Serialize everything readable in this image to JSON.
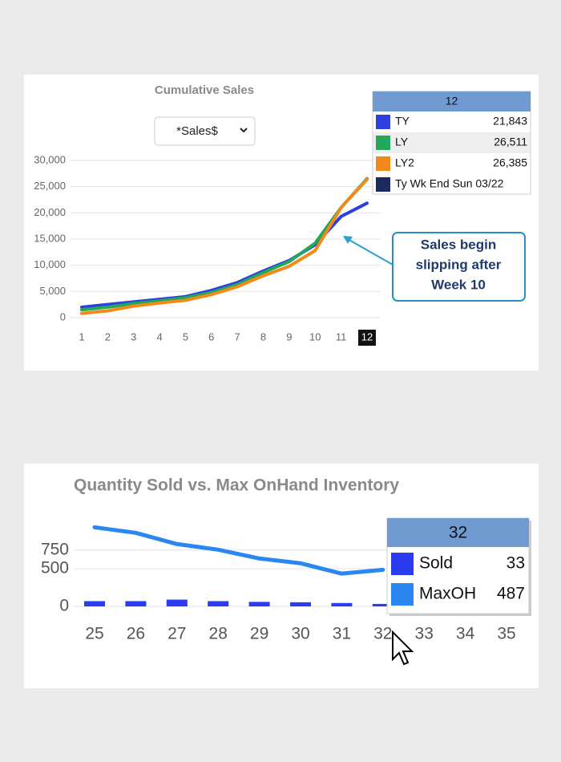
{
  "chart_data": [
    {
      "type": "line",
      "title": "Cumulative Sales",
      "dropdown": "*Sales$",
      "categories": [
        "1",
        "2",
        "3",
        "4",
        "5",
        "6",
        "7",
        "8",
        "9",
        "10",
        "11",
        "12"
      ],
      "series": [
        {
          "name": "TY",
          "color": "#2e3fe0",
          "values": [
            2000,
            2500,
            3000,
            3500,
            4000,
            5200,
            6700,
            8900,
            10900,
            13900,
            19300,
            21843
          ],
          "value_labels": [
            null,
            null,
            null,
            null,
            null,
            null,
            null,
            null,
            null,
            null,
            null,
            "21,843"
          ]
        },
        {
          "name": "LY",
          "color": "#22a85a",
          "values": [
            1500,
            2000,
            2700,
            3200,
            3800,
            4800,
            6300,
            8600,
            10700,
            14200,
            21000,
            26511
          ],
          "value_labels": [
            null,
            null,
            null,
            null,
            null,
            null,
            null,
            null,
            null,
            null,
            null,
            "26,511"
          ]
        },
        {
          "name": "LY2",
          "color": "#f28a1a",
          "values": [
            800,
            1300,
            2200,
            2800,
            3300,
            4400,
            5900,
            8000,
            9800,
            12800,
            21000,
            26385
          ],
          "value_labels": [
            null,
            null,
            null,
            null,
            null,
            null,
            null,
            null,
            null,
            null,
            null,
            "26,385"
          ]
        }
      ],
      "ylim": [
        0,
        30000
      ],
      "yticks": [
        0,
        {
          "value": 5000,
          "label": "5,000"
        },
        {
          "value": 10000,
          "label": "10,000"
        },
        {
          "value": 15000,
          "label": "15,000"
        },
        {
          "value": 20000,
          "label": "20,000"
        },
        {
          "value": 25000,
          "label": "25,000"
        },
        {
          "value": 30000,
          "label": "30,000"
        }
      ],
      "grid": true,
      "selected_index": 11,
      "tooltip": {
        "index": 11,
        "note": "Ty Wk End Sun 03/22",
        "note_color": "#1d2b5c"
      },
      "annotation": [
        "Sales begin",
        "slipping after",
        "Week 10"
      ]
    },
    {
      "type": "combo",
      "title": "Quantity Sold vs. Max OnHand Inventory",
      "categories": [
        "25",
        "26",
        "27",
        "28",
        "29",
        "30",
        "31",
        "32",
        "33",
        "34",
        "35"
      ],
      "series": [
        {
          "name": "Sold",
          "type": "bar",
          "color": "#2a3bf0",
          "values": [
            70,
            70,
            90,
            70,
            60,
            55,
            45,
            33,
            50,
            55,
            55
          ]
        },
        {
          "name": "MaxOH",
          "type": "line",
          "color": "#2a86f0",
          "values": [
            1053,
            979,
            830,
            755,
            638,
            574,
            436,
            487,
            null,
            null,
            null
          ]
        }
      ],
      "ylim": [
        0,
        1100
      ],
      "yticks": [
        0,
        500,
        750
      ],
      "grid": true,
      "tooltip": {
        "index": 7
      }
    }
  ]
}
